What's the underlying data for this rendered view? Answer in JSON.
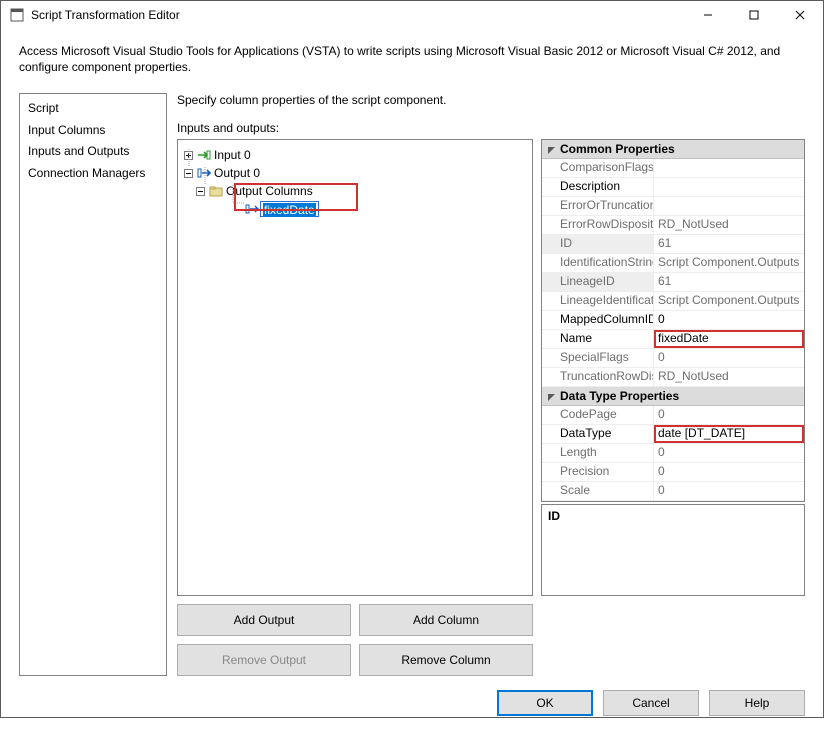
{
  "window": {
    "title": "Script Transformation Editor"
  },
  "description": "Access Microsoft Visual Studio Tools for Applications (VSTA) to write scripts using Microsoft Visual Basic 2012 or Microsoft Visual C# 2012, and configure component properties.",
  "nav": {
    "items": [
      "Script",
      "Input Columns",
      "Inputs and Outputs",
      "Connection Managers"
    ]
  },
  "subheader": "Specify column properties of the script component.",
  "io_label": "Inputs and outputs:",
  "tree": {
    "input0": "Input 0",
    "output0": "Output 0",
    "output_columns": "Output Columns",
    "selected": "fixedDate"
  },
  "properties": {
    "categories": {
      "common": "Common Properties",
      "datatype": "Data Type Properties"
    },
    "common": [
      {
        "name": "ComparisonFlags",
        "value": "",
        "gray": true
      },
      {
        "name": "Description",
        "value": "",
        "gray": false
      },
      {
        "name": "ErrorOrTruncationO",
        "value": "",
        "gray": true
      },
      {
        "name": "ErrorRowDisposition",
        "value": "RD_NotUsed",
        "gray": true
      },
      {
        "name": "ID",
        "value": "61",
        "gray": true,
        "grayname": true,
        "bgname": true
      },
      {
        "name": "IdentificationString",
        "value": "Script Component.Outputs",
        "gray": true
      },
      {
        "name": "LineageID",
        "value": "61",
        "gray": true,
        "grayname": true,
        "bgname": true
      },
      {
        "name": "LineageIdentificatio",
        "value": "Script Component.Outputs",
        "gray": true
      },
      {
        "name": "MappedColumnID",
        "value": "0",
        "gray": false
      },
      {
        "name": "Name",
        "value": "fixedDate",
        "gray": false,
        "highlight": true
      },
      {
        "name": "SpecialFlags",
        "value": "0",
        "gray": true
      },
      {
        "name": "TruncationRowDisp",
        "value": "RD_NotUsed",
        "gray": true
      }
    ],
    "datatype": [
      {
        "name": "CodePage",
        "value": "0",
        "gray": true
      },
      {
        "name": "DataType",
        "value": "date [DT_DATE]",
        "gray": false,
        "highlight": true
      },
      {
        "name": "Length",
        "value": "0",
        "gray": true
      },
      {
        "name": "Precision",
        "value": "0",
        "gray": true
      },
      {
        "name": "Scale",
        "value": "0",
        "gray": true
      }
    ],
    "desc_title": "ID"
  },
  "buttons": {
    "add_output": "Add Output",
    "add_column": "Add Column",
    "remove_output": "Remove Output",
    "remove_column": "Remove Column",
    "ok": "OK",
    "cancel": "Cancel",
    "help": "Help"
  },
  "colors": {
    "highlight_border": "#d03030",
    "selection_bg": "#0078d7",
    "disabled_text": "#888888",
    "panel_border": "#828282",
    "cat_bg": "#dcdcdc",
    "btn_bg": "#e1e1e1",
    "primary_border": "#0078d7"
  }
}
